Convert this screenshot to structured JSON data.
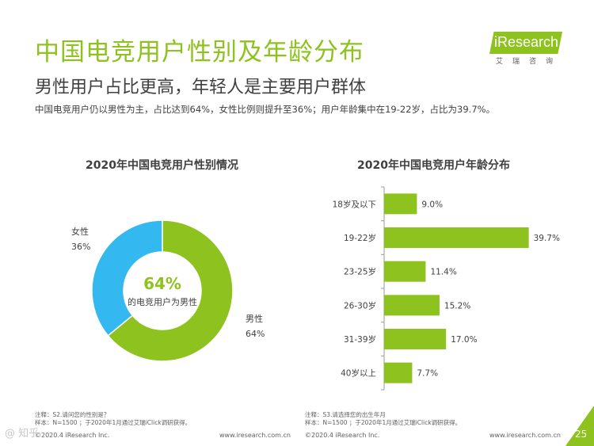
{
  "header": {
    "title": "中国电竞用户性别及年龄分布",
    "subtitle": "男性用户占比更高，年轻人是主要用户群体",
    "description": "中国电竞用户仍以男性为主，占比达到64%，女性比例则提升至36%；用户年龄集中在19-22岁，占比为39.7%。"
  },
  "logo": {
    "brand_text": "iResearch",
    "brand_cn": "艾瑞咨询",
    "color": "#8dc21f"
  },
  "chart_data": [
    {
      "type": "pie",
      "title": "2020年中国电竞用户性别情况",
      "center_value": "64%",
      "center_label": "的电竞用户为男性",
      "slices": [
        {
          "name": "男性",
          "value": 64,
          "label": "64%",
          "color": "#8dc21f"
        },
        {
          "name": "女性",
          "value": 36,
          "label": "36%",
          "color": "#33b8ef"
        }
      ]
    },
    {
      "type": "bar",
      "orientation": "horizontal",
      "title": "2020年中国电竞用户年龄分布",
      "categories": [
        "18岁及以下",
        "19-22岁",
        "23-25岁",
        "26-30岁",
        "31-39岁",
        "40岁以上"
      ],
      "values": [
        9.0,
        39.7,
        11.4,
        15.2,
        17.0,
        7.7
      ],
      "value_labels": [
        "9.0%",
        "39.7%",
        "11.4%",
        "15.2%",
        "17.0%",
        "7.7%"
      ],
      "color": "#8dc21f",
      "xlim": [
        0,
        50
      ]
    }
  ],
  "notes": {
    "left_line1": "注释：S2.请问您的性别是？",
    "left_line2": "样本：N=1500 ；于2020年1月通过艾瑞iClick调研获得。",
    "right_line1": "注释：S3.请选择您的出生年月",
    "right_line2": "样本：N=1500 ；于2020年1月通过艾瑞iClick调研获得。"
  },
  "footer": {
    "left_copyright": "©2020.4 iResearch Inc.",
    "left_url": "www.iresearch.com.cn",
    "right_copyright": "©2020.4 iResearch Inc.",
    "right_url": "www.iresearch.com.cn",
    "page_number": "25"
  },
  "watermark": "@ 知乎"
}
